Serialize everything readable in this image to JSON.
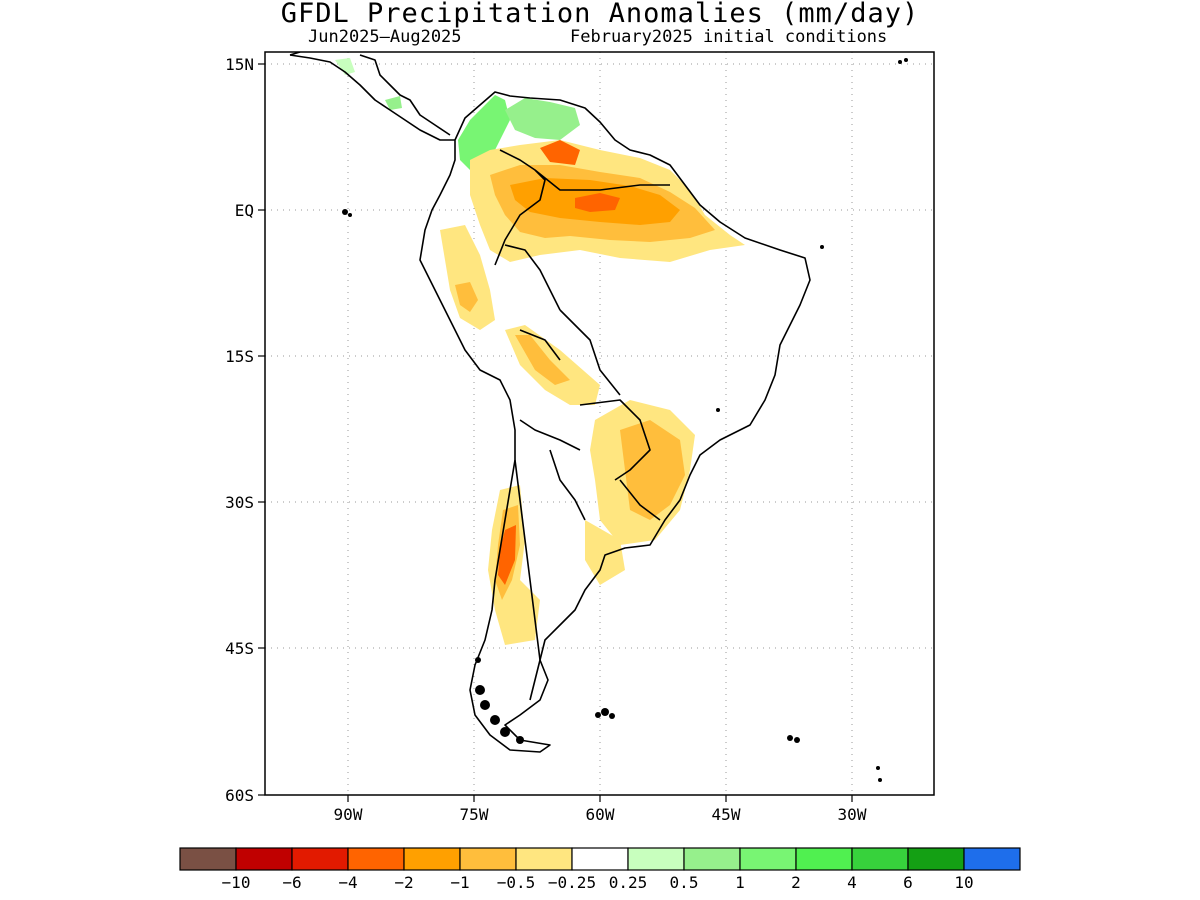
{
  "title": "GFDL Precipitation Anomalies (mm/day)",
  "subtitle_left": "Jun2025–Aug2025",
  "subtitle_right": "February2025 initial conditions",
  "lat_labels": [
    "15N",
    "EQ",
    "15S",
    "30S",
    "45S",
    "60S"
  ],
  "lon_labels": [
    "90W",
    "75W",
    "60W",
    "45W",
    "30W"
  ],
  "colorbar": {
    "colors": [
      "#7a5044",
      "#c00000",
      "#e21a00",
      "#ff6400",
      "#ffa000",
      "#ffbe3c",
      "#ffe680",
      "#ffffff",
      "#c8ffbe",
      "#96f08c",
      "#78f573",
      "#50f050",
      "#37d23c",
      "#14a014",
      "#1e6eeb"
    ],
    "labels": [
      "−10",
      "−6",
      "−4",
      "−2",
      "−1",
      "−0.5",
      "−0.25",
      "0.25",
      "0.5",
      "1",
      "2",
      "4",
      "6",
      "10"
    ]
  }
}
